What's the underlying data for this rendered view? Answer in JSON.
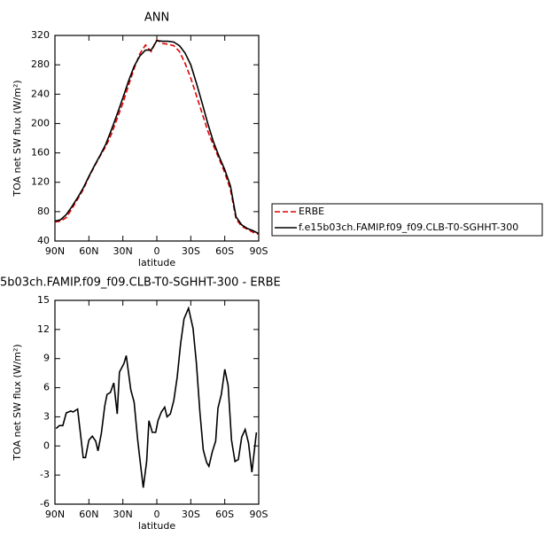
{
  "chart_data": [
    {
      "type": "line",
      "title": "ANN",
      "x_label": "latitude",
      "y_label": "TOA net SW flux (W/m²)",
      "x": [
        90,
        85,
        80,
        75,
        70,
        65,
        60,
        55,
        50,
        45,
        40,
        35,
        30,
        25,
        20,
        15,
        10,
        5,
        0,
        -5,
        -10,
        -15,
        -20,
        -25,
        -30,
        -35,
        -40,
        -45,
        -50,
        -55,
        -60,
        -65,
        -70,
        -75,
        -80,
        -85,
        -90
      ],
      "series": [
        {
          "name": "ERBE",
          "color": "#e00000",
          "dash": "dashed",
          "values": [
            66,
            67,
            72,
            84,
            97,
            110,
            127,
            142,
            156,
            169,
            186,
            207,
            228,
            252,
            275,
            295,
            307,
            298,
            314,
            309,
            308,
            306,
            298,
            282,
            262,
            238,
            214,
            190,
            170,
            152,
            133,
            110,
            70,
            60,
            56,
            52,
            49
          ]
        },
        {
          "name": "f.e15b03ch.FAMIP.f09_f09.CLB-T0-SGHHT-300",
          "color": "#000000",
          "dash": "solid",
          "values": [
            67,
            69,
            76,
            87,
            99,
            112,
            128,
            143,
            157,
            172,
            192,
            213,
            235,
            258,
            278,
            292,
            300,
            300,
            313,
            312,
            312,
            311,
            306,
            296,
            280,
            255,
            228,
            200,
            175,
            155,
            137,
            115,
            73,
            62,
            57,
            54,
            50
          ]
        }
      ],
      "xlim": [
        90,
        -90
      ],
      "xticks": [
        {
          "value": 90,
          "label": "90N"
        },
        {
          "value": 60,
          "label": "60N"
        },
        {
          "value": 30,
          "label": "30N"
        },
        0,
        {
          "value": -30,
          "label": "30S"
        },
        {
          "value": -60,
          "label": "60S"
        },
        {
          "value": -90,
          "label": "90S"
        }
      ],
      "ylim": [
        40,
        320
      ],
      "yticks": [
        40,
        80,
        120,
        160,
        200,
        240,
        280,
        320
      ],
      "legend": "right"
    },
    {
      "type": "line",
      "title": "5b03ch.FAMIP.f09_f09.CLB-T0-SGHHT-300 - ERBE",
      "x_label": "latitude",
      "y_label": "TOA net SW flux (W/m²)",
      "x": [
        89,
        86,
        83,
        80,
        76,
        74,
        70,
        67,
        65,
        63,
        60,
        57,
        54,
        52,
        49,
        46,
        44,
        41,
        38,
        35,
        33,
        29,
        27,
        23,
        20,
        17,
        15,
        12,
        9,
        7,
        4,
        1,
        -1,
        -4,
        -7,
        -9,
        -12,
        -15,
        -18,
        -21,
        -24,
        -28,
        -32,
        -35,
        -38,
        -41,
        -44,
        -46,
        -49,
        -52,
        -54,
        -57,
        -60,
        -63,
        -66,
        -69,
        -72,
        -75,
        -78,
        -81,
        -84,
        -88
      ],
      "series": [
        {
          "color": "#000000",
          "dash": "solid",
          "values": [
            1.8,
            2.1,
            2.1,
            3.4,
            3.6,
            3.5,
            3.8,
            0.8,
            -1.2,
            -1.2,
            0.6,
            1.0,
            0.5,
            -0.5,
            1.3,
            4.1,
            5.3,
            5.5,
            6.5,
            3.3,
            7.6,
            8.5,
            9.3,
            5.8,
            4.5,
            0.7,
            -1.3,
            -4.3,
            -1.6,
            2.6,
            1.4,
            1.4,
            2.6,
            3.5,
            4.0,
            3.0,
            3.3,
            4.7,
            7.1,
            10.5,
            13.1,
            14.2,
            12.1,
            8.5,
            3.5,
            -0.4,
            -1.7,
            -2.1,
            -0.6,
            0.5,
            3.9,
            5.3,
            7.9,
            6.2,
            0.6,
            -1.6,
            -1.4,
            0.9,
            1.7,
            0.3,
            -2.7,
            1.4
          ]
        }
      ],
      "xlim": [
        90,
        -90
      ],
      "xticks": [
        {
          "value": 90,
          "label": "90N"
        },
        {
          "value": 60,
          "label": "60N"
        },
        {
          "value": 30,
          "label": "30N"
        },
        0,
        {
          "value": -30,
          "label": "30S"
        },
        {
          "value": -60,
          "label": "60S"
        },
        {
          "value": -90,
          "label": "90S"
        }
      ],
      "ylim": [
        -6,
        15
      ],
      "yticks": [
        -6,
        -3,
        0,
        3,
        6,
        9,
        12,
        15
      ]
    }
  ]
}
